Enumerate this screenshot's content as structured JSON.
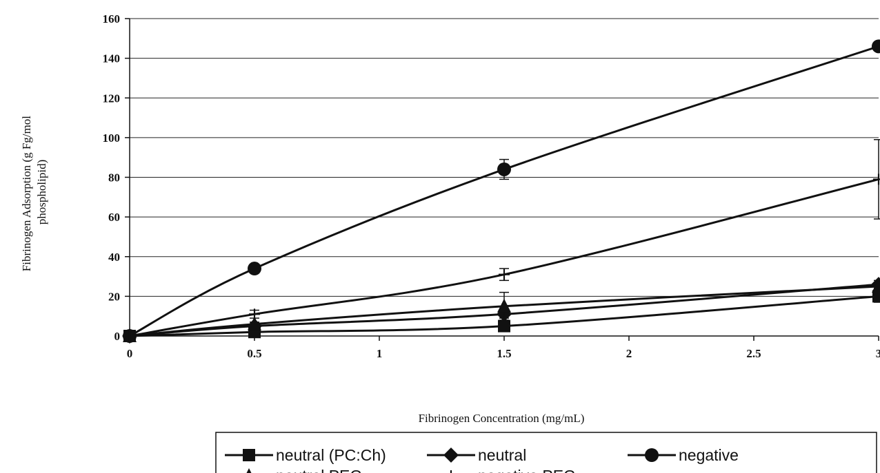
{
  "chart_data": {
    "type": "line",
    "title": "",
    "xlabel": "Fibrinogen Concentration (mg/mL)",
    "ylabel_lines": [
      "Fibrinogen Adsorption (g Fg/mol",
      "phospholipid)"
    ],
    "xlim": [
      0,
      3
    ],
    "ylim": [
      0,
      160
    ],
    "xticks": [
      0,
      0.5,
      1,
      1.5,
      2,
      2.5,
      3
    ],
    "xtick_labels": [
      "0",
      "0.5",
      "1",
      "1.5",
      "2",
      "2.5",
      "3"
    ],
    "yticks": [
      0,
      20,
      40,
      60,
      80,
      100,
      120,
      140,
      160
    ],
    "ytick_labels": [
      "0",
      "20",
      "40",
      "60",
      "80",
      "100",
      "120",
      "140",
      "160"
    ],
    "grid": "horizontal",
    "legend_position": "bottom",
    "colors": {
      "line": "#111111",
      "grid": "#222222",
      "background": "#ffffff"
    },
    "series": [
      {
        "name": "neutral (PC:Ch)",
        "marker": "square",
        "x": [
          0,
          0.5,
          1.5,
          3
        ],
        "y": [
          0,
          2,
          5,
          20
        ],
        "err": [
          0,
          1,
          1,
          3
        ]
      },
      {
        "name": "neutral",
        "marker": "diamond",
        "x": [
          0,
          0.5,
          1.5,
          3
        ],
        "y": [
          0,
          5,
          11,
          26
        ],
        "err": [
          0,
          1,
          2,
          2
        ]
      },
      {
        "name": "negative",
        "marker": "circle",
        "x": [
          0,
          0.5,
          1.5,
          3
        ],
        "y": [
          0,
          34,
          84,
          146
        ],
        "err": [
          0,
          1,
          5,
          2
        ]
      },
      {
        "name": "neutral PEG",
        "marker": "triangle",
        "x": [
          0,
          0.5,
          1.5,
          3
        ],
        "y": [
          0,
          6,
          15,
          25
        ],
        "err": [
          0,
          1,
          7,
          2
        ]
      },
      {
        "name": "negative PEG",
        "marker": "plus",
        "x": [
          0,
          0.5,
          1.5,
          3
        ],
        "y": [
          0,
          11,
          31,
          79
        ],
        "err": [
          0,
          2,
          3,
          20
        ]
      }
    ]
  }
}
